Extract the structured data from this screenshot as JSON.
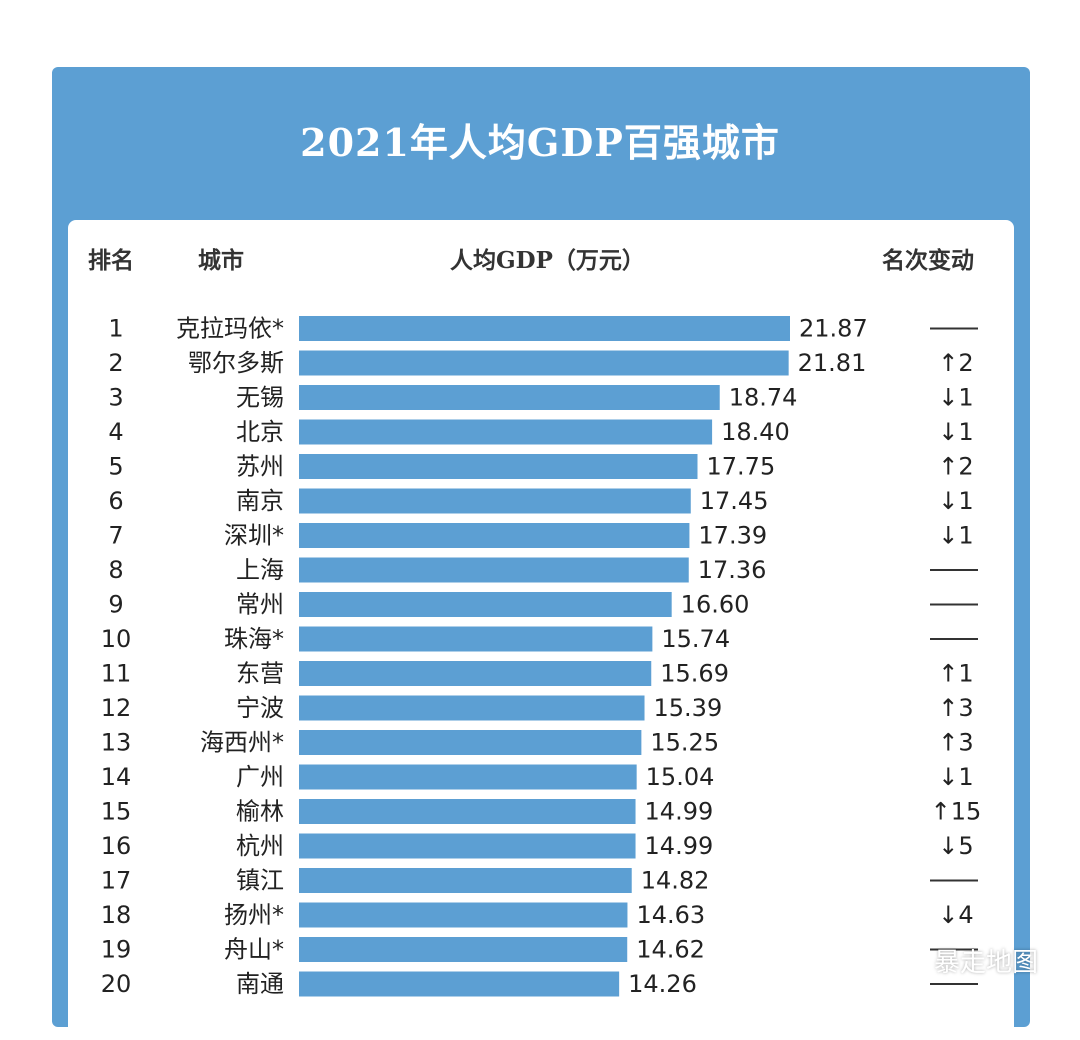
{
  "chart_data": {
    "type": "bar",
    "orientation": "horizontal",
    "title": "2021年人均GDP百强城市",
    "headers": {
      "rank": "排名",
      "city": "城市",
      "value": "人均GDP（万元）",
      "change": "名次变动"
    },
    "xlabel": "人均GDP（万元）",
    "xlim": [
      0,
      21.87
    ],
    "rows": [
      {
        "rank": "1",
        "city": "克拉玛依*",
        "value": 21.87,
        "label": "21.87",
        "change": "——"
      },
      {
        "rank": "2",
        "city": "鄂尔多斯",
        "value": 21.81,
        "label": "21.81",
        "change": "↑2"
      },
      {
        "rank": "3",
        "city": "无锡",
        "value": 18.74,
        "label": "18.74",
        "change": "↓1"
      },
      {
        "rank": "4",
        "city": "北京",
        "value": 18.4,
        "label": "18.40",
        "change": "↓1"
      },
      {
        "rank": "5",
        "city": "苏州",
        "value": 17.75,
        "label": "17.75",
        "change": "↑2"
      },
      {
        "rank": "6",
        "city": "南京",
        "value": 17.45,
        "label": "17.45",
        "change": "↓1"
      },
      {
        "rank": "7",
        "city": "深圳*",
        "value": 17.39,
        "label": "17.39",
        "change": "↓1"
      },
      {
        "rank": "8",
        "city": "上海",
        "value": 17.36,
        "label": "17.36",
        "change": "——"
      },
      {
        "rank": "9",
        "city": "常州",
        "value": 16.6,
        "label": "16.60",
        "change": "——"
      },
      {
        "rank": "10",
        "city": "珠海*",
        "value": 15.74,
        "label": "15.74",
        "change": "——"
      },
      {
        "rank": "11",
        "city": "东营",
        "value": 15.69,
        "label": "15.69",
        "change": "↑1"
      },
      {
        "rank": "12",
        "city": "宁波",
        "value": 15.39,
        "label": "15.39",
        "change": "↑3"
      },
      {
        "rank": "13",
        "city": "海西州*",
        "value": 15.25,
        "label": "15.25",
        "change": "↑3"
      },
      {
        "rank": "14",
        "city": "广州",
        "value": 15.04,
        "label": "15.04",
        "change": "↓1"
      },
      {
        "rank": "15",
        "city": "榆林",
        "value": 14.99,
        "label": "14.99",
        "change": "↑15"
      },
      {
        "rank": "16",
        "city": "杭州",
        "value": 14.99,
        "label": "14.99",
        "change": "↓5"
      },
      {
        "rank": "17",
        "city": "镇江",
        "value": 14.82,
        "label": "14.82",
        "change": "——"
      },
      {
        "rank": "18",
        "city": "扬州*",
        "value": 14.63,
        "label": "14.63",
        "change": "↓4"
      },
      {
        "rank": "19",
        "city": "舟山*",
        "value": 14.62,
        "label": "14.62",
        "change": "——"
      },
      {
        "rank": "20",
        "city": "南通",
        "value": 14.26,
        "label": "14.26",
        "change": "——"
      }
    ]
  },
  "watermark": {
    "text": "暴走地图",
    "icon": "wechat-icon"
  },
  "colors": {
    "bar": "#5c9fd3",
    "header_bg": "#5c9fd3",
    "panel": "#ffffff",
    "text": "#222222"
  }
}
